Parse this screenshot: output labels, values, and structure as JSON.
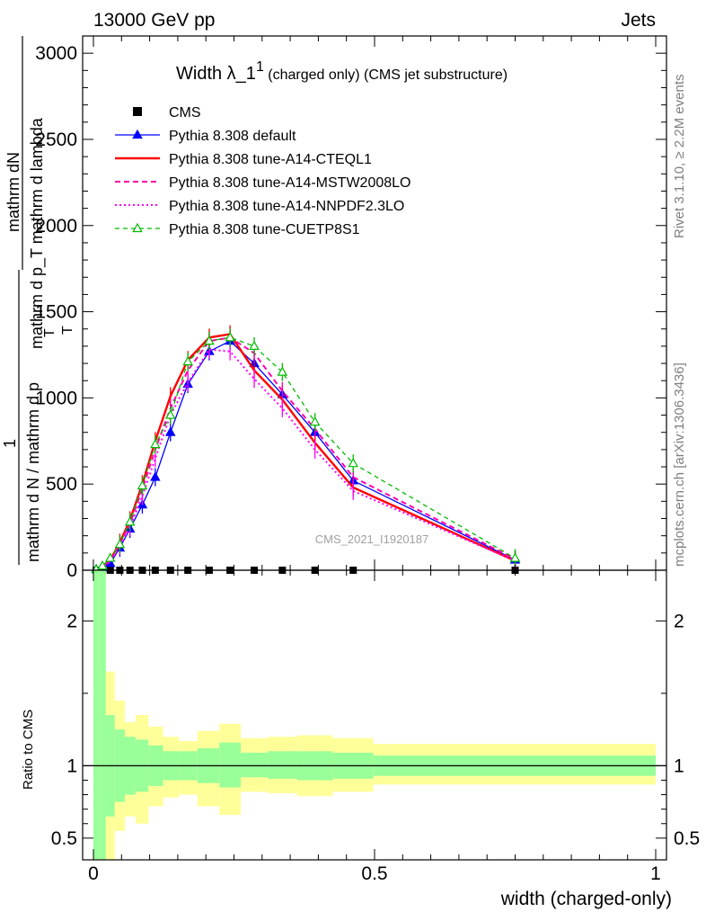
{
  "header": {
    "left": "13000 GeV pp",
    "right": "Jets"
  },
  "side": {
    "rivet": "Rivet 3.1.10, ≥ 2.2M events",
    "mcplots": "mcplots.cern.ch [arXiv:1306.3436]"
  },
  "watermark": "CMS_2021_I1920187",
  "colors": {
    "cms": "#000000",
    "default": "#0000ff",
    "cteql1": "#ff0000",
    "mstw": "#ff00aa",
    "nnpdf": "#ff00ff",
    "cuetp": "#00bb00",
    "band_inner": "#99ff99",
    "band_outer": "#ffff99"
  },
  "chart_data": [
    {
      "type": "line",
      "title": "Width λ_1",
      "title_sup": "1",
      "title_suffix": " (charged only) (CMS jet substructure)",
      "ylabel_num": "mathrm dN",
      "ylabel_den": "mathrm d p_T mathrm d lambda",
      "ylabel_sub": "T",
      "ylabel_prefix_num": "1",
      "ylabel_prefix_den": "mathrm d N / mathrm d p",
      "ylabel_prefix_sub": "T",
      "xlabel": "width (charged-only)",
      "xlim": [
        0,
        1
      ],
      "ylim": [
        0,
        3100
      ],
      "x_ticks": [
        0,
        0.5,
        1
      ],
      "x_tick_labels": [
        "0",
        "0.5",
        "1"
      ],
      "y_ticks": [
        0,
        500,
        1000,
        1500,
        2000,
        2500,
        3000
      ],
      "y_tick_labels": [
        "0",
        "500",
        "1000",
        "1500",
        "2000",
        "2500",
        "3000"
      ],
      "legend_position": "top-left",
      "series": [
        {
          "name": "CMS",
          "key": "cms",
          "style": "markers",
          "x": [
            0.005,
            0.016,
            0.03,
            0.047,
            0.065,
            0.087,
            0.11,
            0.137,
            0.168,
            0.206,
            0.243,
            0.286,
            0.336,
            0.394,
            0.462,
            0.75
          ],
          "y": [
            0,
            0,
            0,
            0,
            0,
            0,
            0,
            0,
            0,
            0,
            0,
            0,
            0,
            0,
            0,
            0
          ]
        },
        {
          "name": "Pythia 8.308 default",
          "key": "default",
          "style": "solid-triangle",
          "x": [
            0.005,
            0.016,
            0.03,
            0.047,
            0.065,
            0.087,
            0.11,
            0.137,
            0.168,
            0.206,
            0.243,
            0.286,
            0.336,
            0.394,
            0.462,
            0.75
          ],
          "y": [
            5,
            15,
            40,
            130,
            240,
            380,
            540,
            800,
            1080,
            1270,
            1330,
            1200,
            1020,
            800,
            520,
            60
          ]
        },
        {
          "name": "Pythia 8.308 tune-A14-CTEQL1",
          "key": "cteql1",
          "style": "solid",
          "x": [
            0.005,
            0.016,
            0.03,
            0.047,
            0.065,
            0.087,
            0.11,
            0.137,
            0.168,
            0.206,
            0.243,
            0.286,
            0.336,
            0.394,
            0.462,
            0.75
          ],
          "y": [
            5,
            20,
            60,
            160,
            290,
            500,
            750,
            1010,
            1220,
            1350,
            1370,
            1160,
            990,
            740,
            480,
            55
          ]
        },
        {
          "name": "Pythia 8.308 tune-A14-MSTW2008LO",
          "key": "mstw",
          "style": "dashed",
          "x": [
            0.005,
            0.016,
            0.03,
            0.047,
            0.065,
            0.087,
            0.11,
            0.137,
            0.168,
            0.206,
            0.243,
            0.286,
            0.336,
            0.394,
            0.462,
            0.75
          ],
          "y": [
            5,
            20,
            55,
            150,
            270,
            470,
            700,
            940,
            1160,
            1330,
            1350,
            1260,
            1040,
            820,
            540,
            65
          ]
        },
        {
          "name": "Pythia 8.308 tune-A14-NNPDF2.3LO",
          "key": "nnpdf",
          "style": "dotted",
          "x": [
            0.005,
            0.016,
            0.03,
            0.047,
            0.065,
            0.087,
            0.11,
            0.137,
            0.168,
            0.206,
            0.243,
            0.286,
            0.336,
            0.394,
            0.462,
            0.75
          ],
          "y": [
            5,
            20,
            50,
            140,
            250,
            430,
            650,
            900,
            1090,
            1280,
            1270,
            1110,
            940,
            700,
            460,
            55
          ]
        },
        {
          "name": "Pythia 8.308 tune-CUETP8S1",
          "key": "cuetp",
          "style": "dashed-open-triangle",
          "x": [
            0.005,
            0.016,
            0.03,
            0.047,
            0.065,
            0.087,
            0.11,
            0.137,
            0.168,
            0.206,
            0.243,
            0.286,
            0.336,
            0.394,
            0.462,
            0.75
          ],
          "y": [
            5,
            25,
            70,
            150,
            280,
            490,
            730,
            900,
            1210,
            1330,
            1350,
            1300,
            1150,
            860,
            620,
            70
          ]
        }
      ]
    },
    {
      "type": "area",
      "ylabel": "Ratio to CMS",
      "xlim": [
        0,
        1
      ],
      "ylim": [
        0.35,
        2.35
      ],
      "x_ticks": [
        0,
        0.5,
        1
      ],
      "y_ticks": [
        0.5,
        1,
        2
      ],
      "y_tick_labels": [
        "0.5",
        "1",
        "2"
      ],
      "reference": 1,
      "bins": [
        {
          "x0": 0.0,
          "x1": 0.01,
          "inner": [
            0.35,
            2.35
          ],
          "outer": [
            0.35,
            2.35
          ]
        },
        {
          "x0": 0.01,
          "x1": 0.022,
          "inner": [
            0.35,
            2.35
          ],
          "outer": [
            0.35,
            2.35
          ]
        },
        {
          "x0": 0.022,
          "x1": 0.038,
          "inner": [
            0.65,
            1.35
          ],
          "outer": [
            0.35,
            1.65
          ]
        },
        {
          "x0": 0.038,
          "x1": 0.056,
          "inner": [
            0.75,
            1.25
          ],
          "outer": [
            0.55,
            1.45
          ]
        },
        {
          "x0": 0.056,
          "x1": 0.075,
          "inner": [
            0.8,
            1.2
          ],
          "outer": [
            0.65,
            1.3
          ]
        },
        {
          "x0": 0.075,
          "x1": 0.098,
          "inner": [
            0.82,
            1.18
          ],
          "outer": [
            0.6,
            1.35
          ]
        },
        {
          "x0": 0.098,
          "x1": 0.124,
          "inner": [
            0.86,
            1.14
          ],
          "outer": [
            0.72,
            1.27
          ]
        },
        {
          "x0": 0.124,
          "x1": 0.152,
          "inner": [
            0.9,
            1.1
          ],
          "outer": [
            0.78,
            1.2
          ]
        },
        {
          "x0": 0.152,
          "x1": 0.185,
          "inner": [
            0.9,
            1.1
          ],
          "outer": [
            0.8,
            1.17
          ]
        },
        {
          "x0": 0.185,
          "x1": 0.224,
          "inner": [
            0.88,
            1.12
          ],
          "outer": [
            0.72,
            1.24
          ]
        },
        {
          "x0": 0.224,
          "x1": 0.262,
          "inner": [
            0.85,
            1.16
          ],
          "outer": [
            0.66,
            1.29
          ]
        },
        {
          "x0": 0.262,
          "x1": 0.31,
          "inner": [
            0.92,
            1.09
          ],
          "outer": [
            0.82,
            1.19
          ]
        },
        {
          "x0": 0.31,
          "x1": 0.362,
          "inner": [
            0.91,
            1.1
          ],
          "outer": [
            0.81,
            1.2
          ]
        },
        {
          "x0": 0.362,
          "x1": 0.426,
          "inner": [
            0.9,
            1.1
          ],
          "outer": [
            0.79,
            1.21
          ]
        },
        {
          "x0": 0.426,
          "x1": 0.498,
          "inner": [
            0.91,
            1.09
          ],
          "outer": [
            0.82,
            1.19
          ]
        },
        {
          "x0": 0.498,
          "x1": 1.0,
          "inner": [
            0.93,
            1.07
          ],
          "outer": [
            0.87,
            1.15
          ]
        }
      ]
    }
  ]
}
